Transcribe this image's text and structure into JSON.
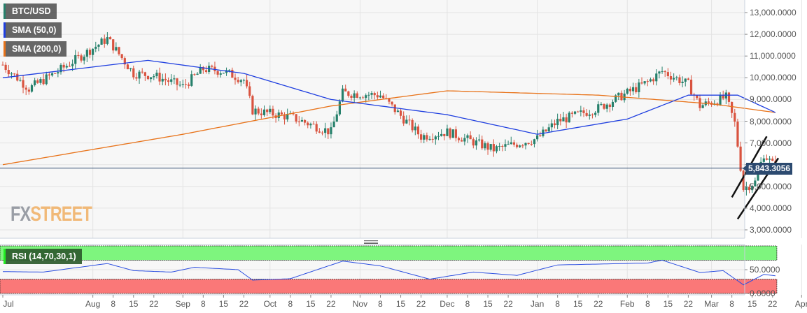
{
  "legend": {
    "symbol": {
      "label": "BTC/USD",
      "color": "#26806b"
    },
    "sma50": {
      "label": "SMA (50,0)",
      "color": "#1f3fe0"
    },
    "sma200": {
      "label": "SMA (200,0)",
      "color": "#e8731a"
    }
  },
  "rsi_legend": {
    "label": "RSI (14,70,30,1)"
  },
  "current_price": {
    "label": "5,843.3056",
    "value": 5843.3056
  },
  "logo": {
    "fx": "FX",
    "street": "STREET"
  },
  "colors": {
    "up": "#26806b",
    "down": "#d9533f",
    "sma50": "#1f3fe0",
    "sma200": "#e8731a",
    "rsi_line": "#2a4de0",
    "overbought_zone": "#7ef57e",
    "oversold_zone": "#fa7878",
    "price_line": "#2c4a70",
    "grid": "#e3e3e3",
    "plot_bg": "#f7f7f7"
  },
  "chart_data": [
    {
      "type": "candlestick",
      "title": "BTC/USD",
      "xlabel": "",
      "ylabel": "",
      "ylim": [
        2500,
        13500
      ],
      "grid": true,
      "y_ticks": [
        "13,000.0000",
        "12,000.0000",
        "11,000.0000",
        "10,000.0000",
        "9,000.0000",
        "8,000.0000",
        "7,000.0000",
        "6,000.0000",
        "5,000.0000",
        "4,000.0000",
        "3,000.0000"
      ],
      "x_ticks": [
        "Jul",
        "Aug",
        "8",
        "15",
        "22",
        "Sep",
        "8",
        "15",
        "22",
        "Oct",
        "8",
        "15",
        "22",
        "Nov",
        "8",
        "15",
        "22",
        "Dec",
        "8",
        "15",
        "22",
        "Jan",
        "8",
        "15",
        "22",
        "Feb",
        "8",
        "15",
        "22",
        "Mar",
        "8",
        "15",
        "22",
        "Apr"
      ],
      "last_price": 5843.3056,
      "approx_close_path": [
        {
          "date": "Jul 1",
          "close": 10600
        },
        {
          "date": "Jul 10",
          "close": 9500
        },
        {
          "date": "Jul 20",
          "close": 10300
        },
        {
          "date": "Aug 6",
          "close": 11800
        },
        {
          "date": "Aug 15",
          "close": 10200
        },
        {
          "date": "Aug 22",
          "close": 10100
        },
        {
          "date": "Sep 1",
          "close": 9600
        },
        {
          "date": "Sep 8",
          "close": 10400
        },
        {
          "date": "Sep 15",
          "close": 10300
        },
        {
          "date": "Sep 22",
          "close": 9900
        },
        {
          "date": "Sep 25",
          "close": 8500
        },
        {
          "date": "Oct 8",
          "close": 8200
        },
        {
          "date": "Oct 22",
          "close": 7500
        },
        {
          "date": "Oct 26",
          "close": 9300
        },
        {
          "date": "Nov 8",
          "close": 9200
        },
        {
          "date": "Nov 22",
          "close": 7300
        },
        {
          "date": "Dec 1",
          "close": 7500
        },
        {
          "date": "Dec 17",
          "close": 6700
        },
        {
          "date": "Jan 1",
          "close": 7200
        },
        {
          "date": "Jan 8",
          "close": 8000
        },
        {
          "date": "Jan 22",
          "close": 8600
        },
        {
          "date": "Feb 8",
          "close": 9800
        },
        {
          "date": "Feb 13",
          "close": 10300
        },
        {
          "date": "Feb 22",
          "close": 9700
        },
        {
          "date": "Feb 26",
          "close": 8700
        },
        {
          "date": "Mar 6",
          "close": 9100
        },
        {
          "date": "Mar 9",
          "close": 7900
        },
        {
          "date": "Mar 12",
          "close": 4900
        },
        {
          "date": "Mar 16",
          "close": 5200
        },
        {
          "date": "Mar 19",
          "close": 6500
        },
        {
          "date": "Mar 23",
          "close": 5843
        }
      ],
      "series": [
        {
          "name": "SMA (50,0)",
          "approx": [
            {
              "date": "Jul 1",
              "value": 10000
            },
            {
              "date": "Aug 20",
              "value": 10800
            },
            {
              "date": "Sep 22",
              "value": 10200
            },
            {
              "date": "Oct 22",
              "value": 9000
            },
            {
              "date": "Dec 1",
              "value": 8300
            },
            {
              "date": "Jan 1",
              "value": 7400
            },
            {
              "date": "Feb 1",
              "value": 8100
            },
            {
              "date": "Feb 22",
              "value": 9200
            },
            {
              "date": "Mar 10",
              "value": 9200
            },
            {
              "date": "Mar 23",
              "value": 8400
            }
          ]
        },
        {
          "name": "SMA (200,0)",
          "approx": [
            {
              "date": "Jul 1",
              "value": 6000
            },
            {
              "date": "Sep 1",
              "value": 7400
            },
            {
              "date": "Oct 22",
              "value": 8700
            },
            {
              "date": "Dec 1",
              "value": 9400
            },
            {
              "date": "Jan 22",
              "value": 9200
            },
            {
              "date": "Mar 1",
              "value": 8800
            },
            {
              "date": "Mar 23",
              "value": 8400
            }
          ]
        }
      ],
      "annotations": [
        {
          "type": "trend_line",
          "desc": "upper channel line",
          "from": [
            4500,
            "Mar 8"
          ],
          "to": [
            7300,
            "Mar 20"
          ]
        },
        {
          "type": "trend_line",
          "desc": "lower channel line",
          "from": [
            3500,
            "Mar 10"
          ],
          "to": [
            6300,
            "Mar 24"
          ]
        },
        {
          "type": "horizontal_line",
          "value": 5843.3056
        }
      ]
    },
    {
      "type": "line",
      "title": "RSI (14,70,30,1)",
      "ylim": [
        0,
        100
      ],
      "y_ticks": [
        "50.0000",
        "0.0000"
      ],
      "zones": {
        "overbought": 70,
        "oversold": 30
      },
      "approx": [
        {
          "date": "Jul 1",
          "value": 46
        },
        {
          "date": "Jul 15",
          "value": 45
        },
        {
          "date": "Aug 6",
          "value": 63
        },
        {
          "date": "Aug 15",
          "value": 48
        },
        {
          "date": "Aug 28",
          "value": 45
        },
        {
          "date": "Sep 5",
          "value": 55
        },
        {
          "date": "Sep 20",
          "value": 50
        },
        {
          "date": "Sep 25",
          "value": 28
        },
        {
          "date": "Oct 8",
          "value": 31
        },
        {
          "date": "Oct 26",
          "value": 68
        },
        {
          "date": "Nov 8",
          "value": 58
        },
        {
          "date": "Nov 25",
          "value": 30
        },
        {
          "date": "Dec 10",
          "value": 45
        },
        {
          "date": "Dec 25",
          "value": 38
        },
        {
          "date": "Jan 8",
          "value": 60
        },
        {
          "date": "Feb 8",
          "value": 64
        },
        {
          "date": "Feb 13",
          "value": 70
        },
        {
          "date": "Feb 26",
          "value": 44
        },
        {
          "date": "Mar 5",
          "value": 48
        },
        {
          "date": "Mar 12",
          "value": 18
        },
        {
          "date": "Mar 19",
          "value": 40
        },
        {
          "date": "Mar 23",
          "value": 37
        }
      ]
    }
  ]
}
